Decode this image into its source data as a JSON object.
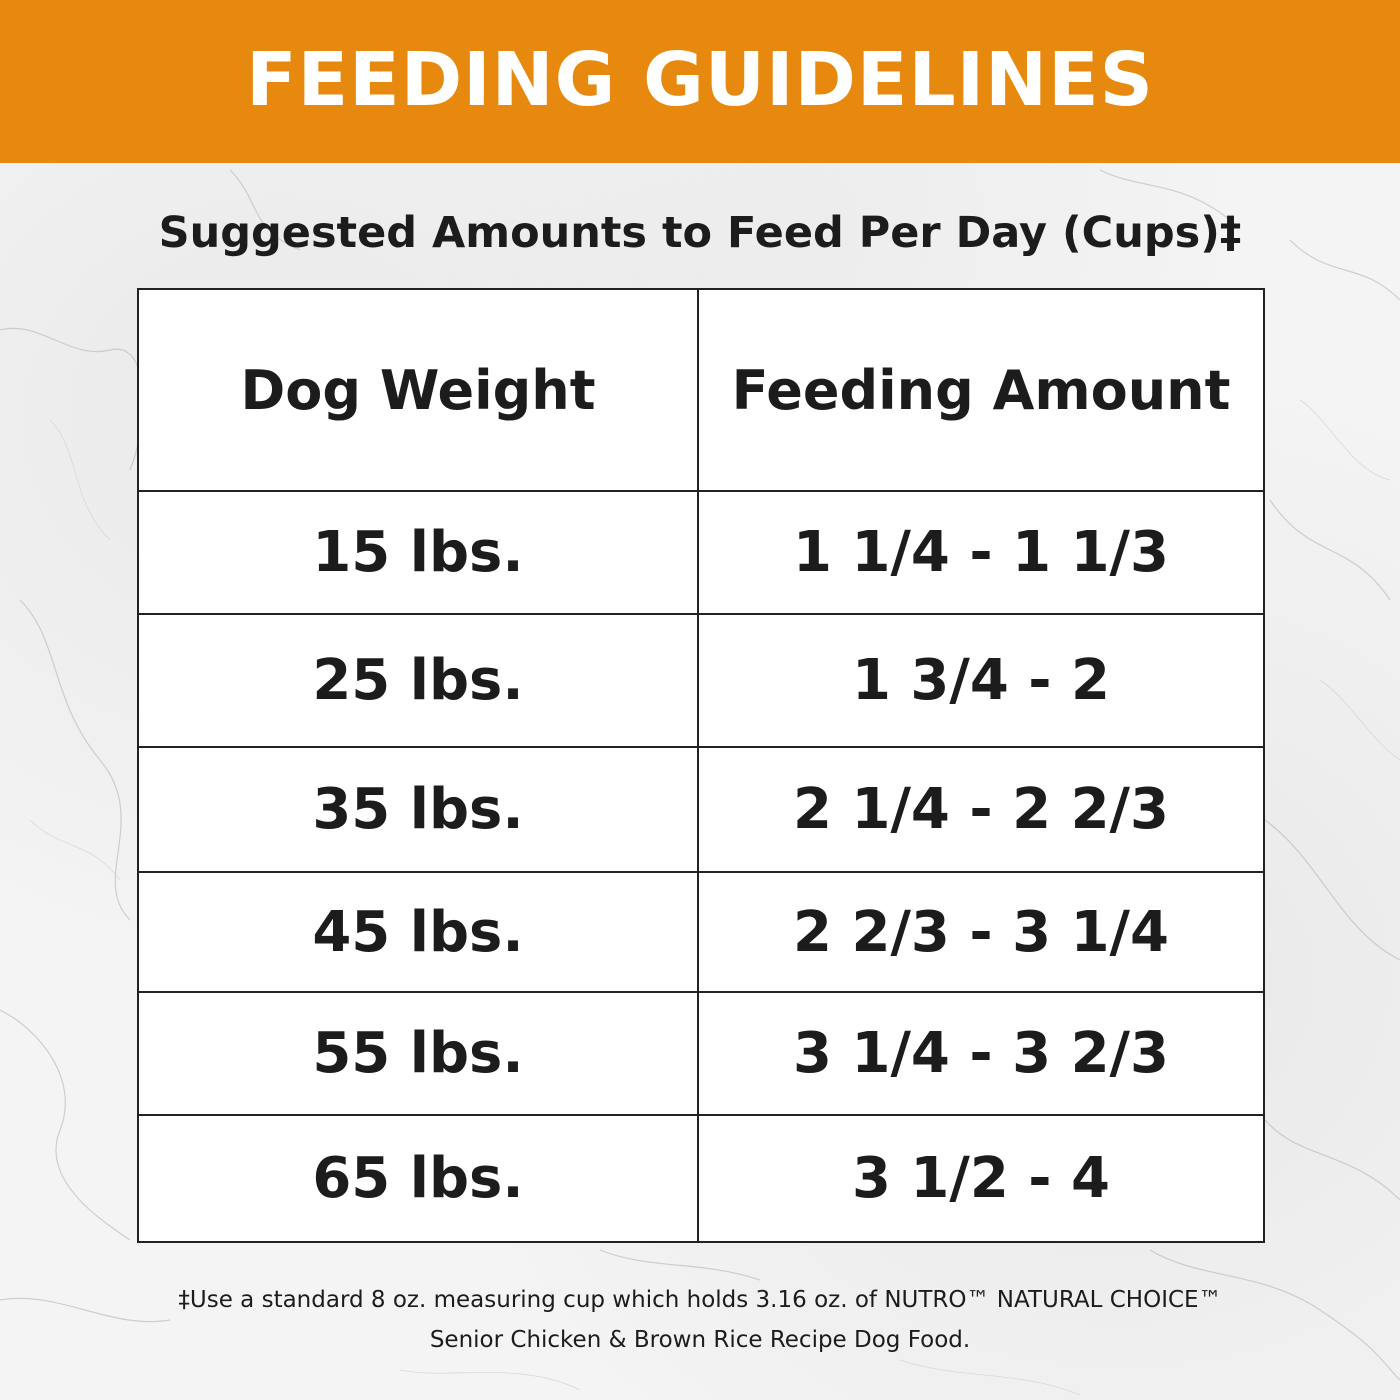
{
  "banner": {
    "title": "FEEDING GUIDELINES",
    "background_color": "#e8890f",
    "text_color": "#ffffff"
  },
  "subtitle": "Suggested Amounts to Feed Per Day (Cups)‡",
  "table": {
    "headers": [
      "Dog Weight",
      "Feeding Amount"
    ],
    "rows": [
      {
        "weight": "15 lbs.",
        "amount": "1 1/4 - 1 1/3"
      },
      {
        "weight": "25 lbs.",
        "amount": "1 3/4 - 2"
      },
      {
        "weight": "35 lbs.",
        "amount": "2 1/4 - 2 2/3"
      },
      {
        "weight": "45 lbs.",
        "amount": "2 2/3 - 3 1/4"
      },
      {
        "weight": "55 lbs.",
        "amount": "3 1/4 - 3 2/3"
      },
      {
        "weight": "65 lbs.",
        "amount": "3 1/2 - 4"
      }
    ]
  },
  "footnote": {
    "line1": "‡Use a standard 8 oz. measuring cup which holds 3.16 oz. of NUTRO™ NATURAL CHOICE™",
    "line2": "Senior Chicken & Brown Rice Recipe Dog Food."
  }
}
